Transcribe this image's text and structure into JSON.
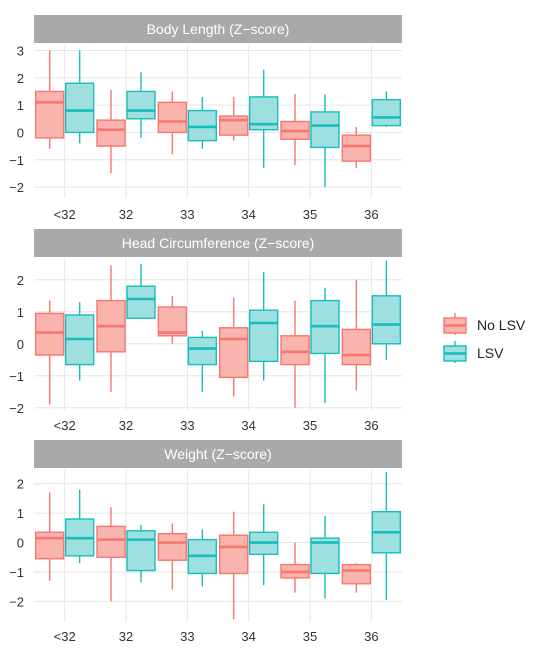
{
  "chart_data": {
    "type": "box",
    "categories": [
      "<32",
      "32",
      "33",
      "34",
      "35",
      "36"
    ],
    "legend": {
      "position": "right",
      "items": [
        {
          "label": "No LSV",
          "color": "#F8766D",
          "fill": "#F9B4AE"
        },
        {
          "label": "LSV",
          "color": "#17BEBB",
          "fill": "#9EE0DF"
        }
      ]
    },
    "panels": [
      {
        "title": "Body Length (Z−score)",
        "yticks": [
          "3",
          "2",
          "1",
          "0",
          "−1",
          "−2"
        ],
        "ytick_values": [
          3,
          2,
          1,
          0,
          -1,
          -2
        ],
        "ylim": [
          -2.4,
          3.2
        ],
        "grid": true,
        "series": [
          {
            "name": "No LSV",
            "boxes": [
              {
                "min": -0.6,
                "q1": -0.2,
                "median": 1.1,
                "q3": 1.5,
                "max": 3.0
              },
              {
                "min": -1.5,
                "q1": -0.5,
                "median": 0.1,
                "q3": 0.45,
                "max": 1.55
              },
              {
                "min": -0.8,
                "q1": 0.0,
                "median": 0.4,
                "q3": 1.1,
                "max": 1.5
              },
              {
                "min": -0.3,
                "q1": -0.1,
                "median": 0.45,
                "q3": 0.6,
                "max": 1.3
              },
              {
                "min": -1.2,
                "q1": -0.25,
                "median": 0.05,
                "q3": 0.4,
                "max": 1.4
              },
              {
                "min": -1.3,
                "q1": -1.05,
                "median": -0.5,
                "q3": -0.1,
                "max": 0.2
              }
            ]
          },
          {
            "name": "LSV",
            "boxes": [
              {
                "min": -0.4,
                "q1": 0.0,
                "median": 0.8,
                "q3": 1.8,
                "max": 3.0
              },
              {
                "min": -0.2,
                "q1": 0.5,
                "median": 0.8,
                "q3": 1.5,
                "max": 2.2
              },
              {
                "min": -0.6,
                "q1": -0.3,
                "median": 0.2,
                "q3": 0.8,
                "max": 1.3
              },
              {
                "min": -1.3,
                "q1": 0.1,
                "median": 0.3,
                "q3": 1.3,
                "max": 2.3
              },
              {
                "min": -2.0,
                "q1": -0.55,
                "median": 0.25,
                "q3": 0.75,
                "max": 1.4
              },
              {
                "min": 0.2,
                "q1": 0.25,
                "median": 0.55,
                "q3": 1.2,
                "max": 1.5
              }
            ]
          }
        ]
      },
      {
        "title": "Head Circumference (Z−score)",
        "yticks": [
          "2",
          "1",
          "0",
          "−1",
          "−2"
        ],
        "ytick_values": [
          2,
          1,
          0,
          -1,
          -2
        ],
        "ylim": [
          -2.1,
          2.65
        ],
        "grid": true,
        "series": [
          {
            "name": "No LSV",
            "boxes": [
              {
                "min": -1.9,
                "q1": -0.35,
                "median": 0.35,
                "q3": 0.95,
                "max": 1.35
              },
              {
                "min": -1.5,
                "q1": -0.25,
                "median": 0.55,
                "q3": 1.35,
                "max": 2.45
              },
              {
                "min": 0.0,
                "q1": 0.25,
                "median": 0.35,
                "q3": 1.15,
                "max": 1.5
              },
              {
                "min": -1.65,
                "q1": -1.05,
                "median": 0.15,
                "q3": 0.5,
                "max": 1.45
              },
              {
                "min": -2.0,
                "q1": -0.65,
                "median": -0.25,
                "q3": 0.25,
                "max": 1.35
              },
              {
                "min": -1.45,
                "q1": -0.65,
                "median": -0.35,
                "q3": 0.45,
                "max": 2.0
              }
            ]
          },
          {
            "name": "LSV",
            "boxes": [
              {
                "min": -1.15,
                "q1": -0.65,
                "median": 0.15,
                "q3": 0.9,
                "max": 1.3
              },
              {
                "min": 0.8,
                "q1": 0.8,
                "median": 1.4,
                "q3": 1.8,
                "max": 2.5
              },
              {
                "min": -1.5,
                "q1": -0.65,
                "median": -0.15,
                "q3": 0.2,
                "max": 0.4
              },
              {
                "min": -1.15,
                "q1": -0.55,
                "median": 0.65,
                "q3": 1.05,
                "max": 2.25
              },
              {
                "min": -1.85,
                "q1": -0.3,
                "median": 0.55,
                "q3": 1.35,
                "max": 1.75
              },
              {
                "min": -0.5,
                "q1": 0.0,
                "median": 0.6,
                "q3": 1.5,
                "max": 2.6
              }
            ]
          }
        ]
      },
      {
        "title": "Weight (Z−score)",
        "yticks": [
          "2",
          "1",
          "0",
          "−1",
          "−2"
        ],
        "ytick_values": [
          2,
          1,
          0,
          -1,
          -2
        ],
        "ylim": [
          -2.7,
          2.5
        ],
        "grid": true,
        "series": [
          {
            "name": "No LSV",
            "boxes": [
              {
                "min": -1.3,
                "q1": -0.55,
                "median": 0.15,
                "q3": 0.35,
                "max": 1.7
              },
              {
                "min": -2.0,
                "q1": -0.5,
                "median": 0.1,
                "q3": 0.55,
                "max": 1.2
              },
              {
                "min": -1.6,
                "q1": -0.6,
                "median": 0.0,
                "q3": 0.3,
                "max": 0.65
              },
              {
                "min": -2.6,
                "q1": -1.05,
                "median": -0.15,
                "q3": 0.25,
                "max": 1.05
              },
              {
                "min": -1.7,
                "q1": -1.2,
                "median": -1.0,
                "q3": -0.75,
                "max": 0.0
              },
              {
                "min": -1.7,
                "q1": -1.4,
                "median": -0.95,
                "q3": -0.75,
                "max": -0.7
              }
            ]
          },
          {
            "name": "LSV",
            "boxes": [
              {
                "min": -0.7,
                "q1": -0.45,
                "median": 0.15,
                "q3": 0.8,
                "max": 1.8
              },
              {
                "min": -1.35,
                "q1": -0.95,
                "median": 0.1,
                "q3": 0.4,
                "max": 0.6
              },
              {
                "min": -1.5,
                "q1": -1.05,
                "median": -0.45,
                "q3": 0.1,
                "max": 0.45
              },
              {
                "min": -1.45,
                "q1": -0.4,
                "median": 0.0,
                "q3": 0.35,
                "max": 1.3
              },
              {
                "min": -1.9,
                "q1": -1.05,
                "median": 0.0,
                "q3": 0.15,
                "max": 0.9
              },
              {
                "min": -1.95,
                "q1": -0.35,
                "median": 0.35,
                "q3": 1.05,
                "max": 2.4
              }
            ]
          }
        ]
      }
    ]
  }
}
